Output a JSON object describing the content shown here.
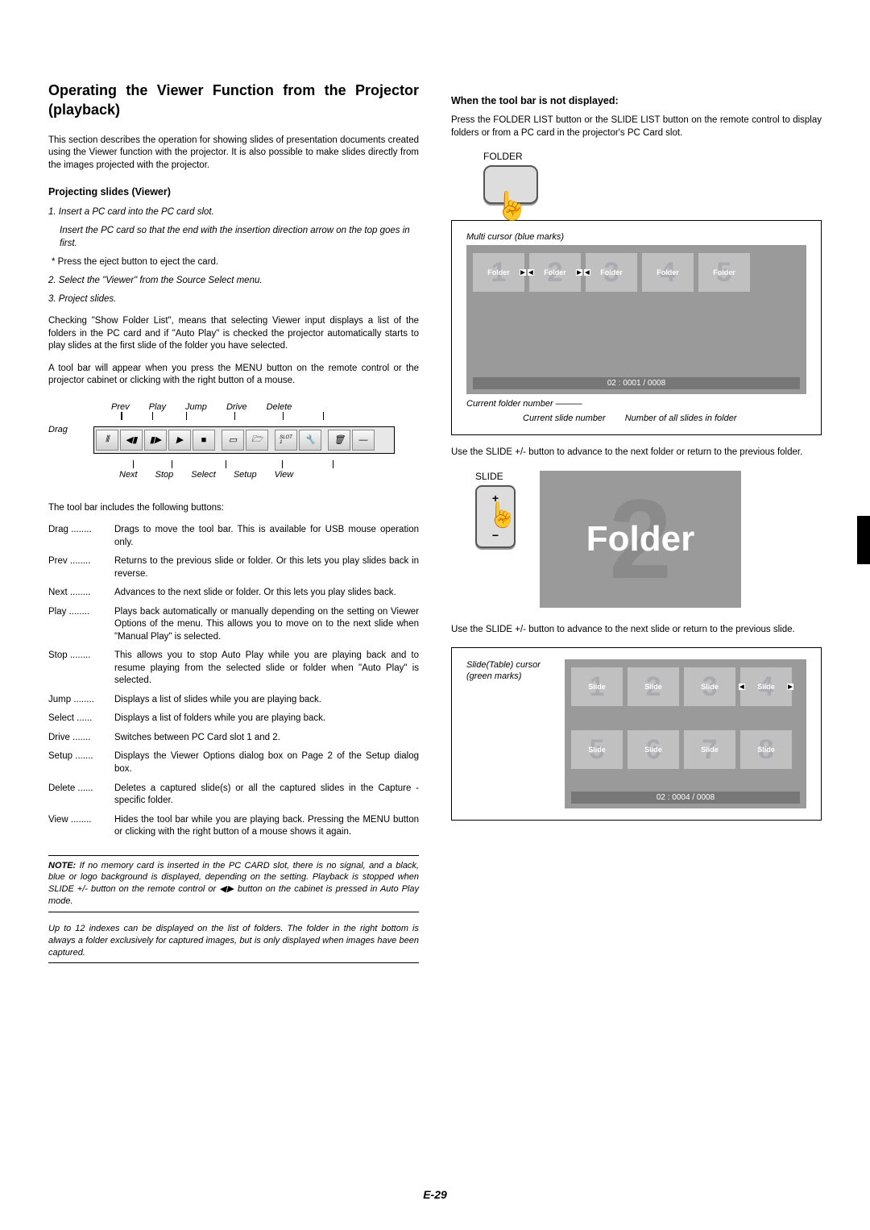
{
  "left": {
    "title": "Operating the Viewer Function from the Projector (playback)",
    "intro": "This section describes the operation for showing slides of presentation documents created using the Viewer function with the projector. It is also possible to make slides directly from the images projected with the projector.",
    "sub1": "Projecting slides (Viewer)",
    "step1": "1. Insert a PC card into the PC card slot.",
    "step1b": "Insert the PC card so that the end with the insertion direction arrow on the top goes in first.",
    "eject": "Press the eject button to eject the card.",
    "step2": "2. Select the \"Viewer\" from the Source Select menu.",
    "step3": "3. Project slides.",
    "para1": "Checking \"Show Folder List\", means that selecting Viewer input displays a list of the folders in the PC card and if \"Auto Play\" is checked the projector automatically starts to play slides at the first slide of the folder you have selected.",
    "para2": "A tool bar will appear when you press the MENU button on the remote control or the projector cabinet or clicking with the right button of a mouse.",
    "tb_top": {
      "drag": "Drag",
      "prev": "Prev",
      "play": "Play",
      "jump": "Jump",
      "drive": "Drive",
      "delete": "Delete"
    },
    "tb_bot": {
      "next": "Next",
      "stop": "Stop",
      "select": "Select",
      "setup": "Setup",
      "view": "View"
    },
    "tb_caption": "The tool bar includes the following buttons:",
    "defs": [
      {
        "t": "Drag",
        "d": "Drags to move the tool bar. This is available for USB mouse operation only."
      },
      {
        "t": "Prev",
        "d": "Returns to the previous slide or folder. Or this lets you play slides back in reverse."
      },
      {
        "t": "Next",
        "d": "Advances to the next slide or folder. Or this lets you play slides back."
      },
      {
        "t": "Play",
        "d": "Plays back automatically or manually depending on the setting on Viewer Options of the menu. This allows you to move on to the next slide when \"Manual Play\" is selected."
      },
      {
        "t": "Stop",
        "d": "This allows you to stop Auto Play while you are playing back and to resume playing from the selected slide or folder when \"Auto Play\" is selected."
      },
      {
        "t": "Jump",
        "d": "Displays a list of slides while you are playing back."
      },
      {
        "t": "Select",
        "d": "Displays a list of folders while you are playing back."
      },
      {
        "t": "Drive",
        "d": "Switches between PC Card slot 1 and 2."
      },
      {
        "t": "Setup",
        "d": "Displays the Viewer Options dialog box on Page 2 of the Setup dialog box."
      },
      {
        "t": "Delete",
        "d": "Deletes a captured slide(s) or all the captured slides in the Capture - specific folder."
      },
      {
        "t": "View",
        "d": "Hides the tool bar while you are playing back. Pressing the MENU button or clicking with the right button of a mouse shows it again."
      }
    ],
    "note1_label": "NOTE:",
    "note1": " If no memory card is inserted in the PC CARD slot, there is no signal, and a black, blue or logo background is displayed, depending on the setting. Playback is stopped when SLIDE +/- button on the remote control or ◀▶ button on the cabinet is pressed in Auto Play mode.",
    "note2": "Up to 12 indexes can be displayed on the list of folders. The folder in the right bottom is always a folder exclusively for captured images, but is only displayed when images have been captured."
  },
  "right": {
    "h1": "When the tool bar is not displayed:",
    "p1": "Press the FOLDER LIST button or the SLIDE LIST button on the remote control to display folders or from a PC card in the projector's PC Card slot.",
    "folder_btn": "FOLDER",
    "anno_multi": "Multi cursor (blue marks)",
    "folders": [
      {
        "n": "1",
        "lbl": "Folder",
        "mk": "r"
      },
      {
        "n": "2",
        "lbl": "Folder",
        "mk": "lr"
      },
      {
        "n": "3",
        "lbl": "Folder",
        "mk": "l"
      },
      {
        "n": "4",
        "lbl": "Folder"
      },
      {
        "n": "5",
        "lbl": "Folder"
      }
    ],
    "anno_cfn": "Current folder number",
    "status1": "02 : 0001 / 0008",
    "anno_csn": "Current slide number",
    "anno_nas": "Number of all slides in folder",
    "p2": "Use the SLIDE +/- button to advance to the next folder or return to the previous folder.",
    "slide_btn": "SLIDE",
    "big_folder_n": "2",
    "big_folder_t": "Folder",
    "p3": "Use the SLIDE +/- button to advance to the next slide or return to the previous slide.",
    "anno_stc": "Slide(Table) cursor (green marks)",
    "slides": [
      {
        "n": "1",
        "lbl": "Slide"
      },
      {
        "n": "2",
        "lbl": "Slide"
      },
      {
        "n": "3",
        "lbl": "Slide"
      },
      {
        "n": "4",
        "lbl": "Slide",
        "mk": "lr"
      },
      {
        "n": "5",
        "lbl": "Slide"
      },
      {
        "n": "6",
        "lbl": "Slide"
      },
      {
        "n": "7",
        "lbl": "Slide"
      },
      {
        "n": "8",
        "lbl": "Slide"
      }
    ],
    "status2": "02 : 0004 / 0008"
  },
  "page_num": "E-29"
}
